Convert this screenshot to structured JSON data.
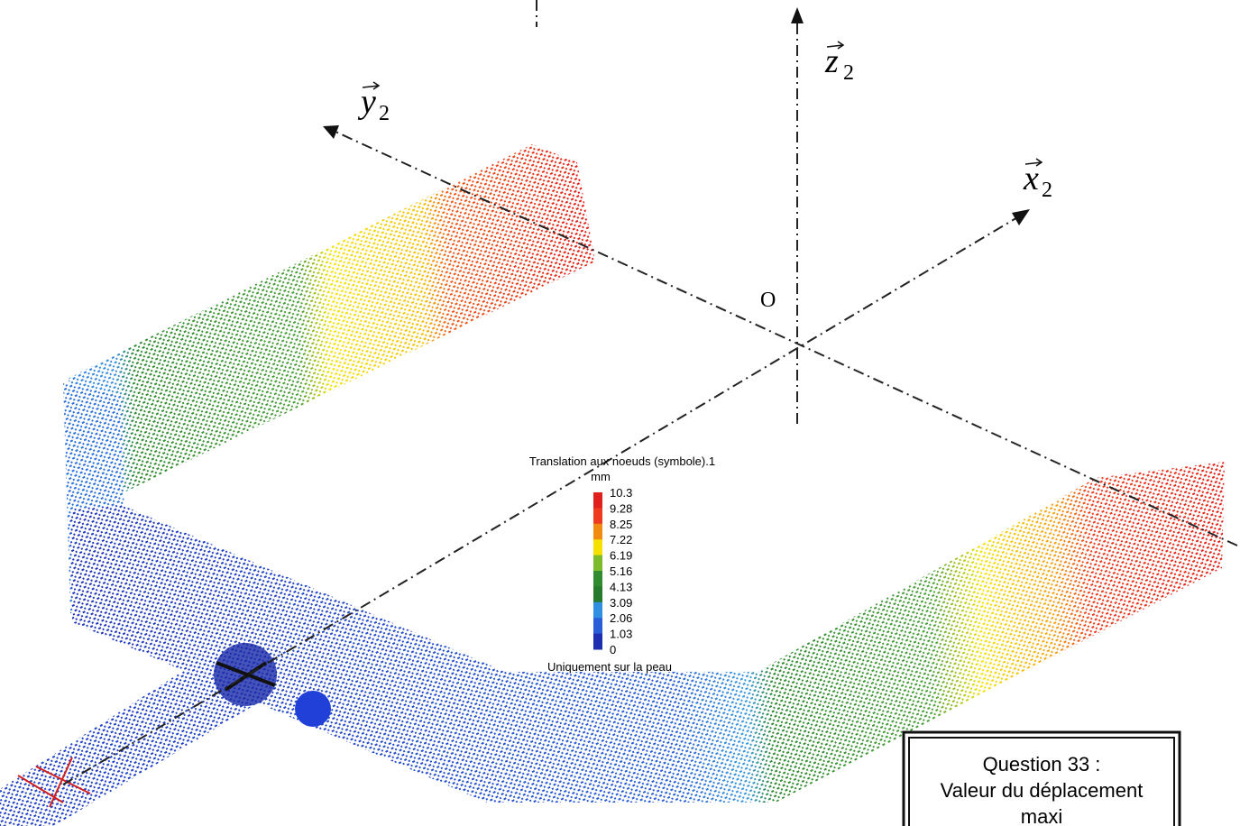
{
  "axes": [
    {
      "symbol": "y",
      "subscript": "2"
    },
    {
      "symbol": "z",
      "subscript": "2"
    },
    {
      "symbol": "x",
      "subscript": "2"
    }
  ],
  "origin": "O",
  "legend": {
    "title": "Translation aux noeuds (symbole).1",
    "unit": "mm",
    "levels": [
      "10.3",
      "9.28",
      "8.25",
      "7.22",
      "6.19",
      "5.16",
      "4.13",
      "3.09",
      "2.06",
      "1.03",
      "0"
    ],
    "colors": [
      "#e0201c",
      "#ee3a1e",
      "#f08a10",
      "#f5e000",
      "#7cbc2c",
      "#2f8a30",
      "#257a2c",
      "#2f8fe0",
      "#2a5ed8",
      "#1e2eb0"
    ],
    "note": "Uniquement sur la peau"
  },
  "question": {
    "lines": [
      "Question 33 :",
      "Valeur du déplacement",
      "maxi"
    ]
  }
}
